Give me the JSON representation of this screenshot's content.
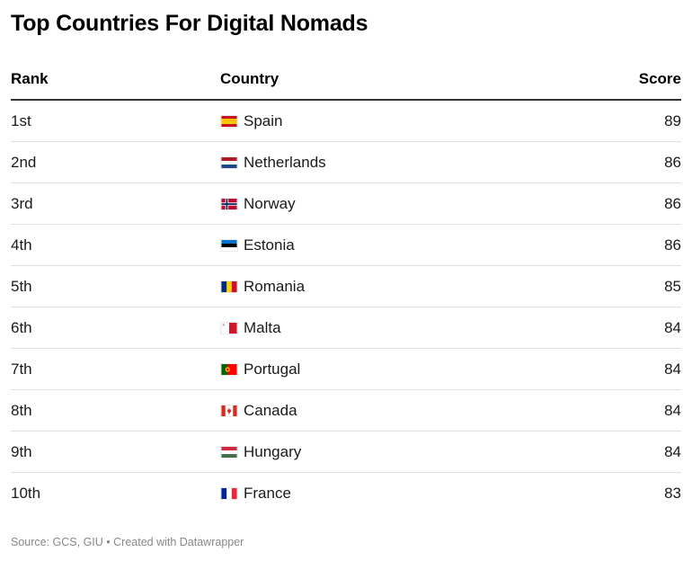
{
  "title": "Top Countries For Digital Nomads",
  "chart_data": {
    "type": "table",
    "columns": [
      "Rank",
      "Country",
      "Score"
    ],
    "rows": [
      {
        "rank": "1st",
        "country": "Spain",
        "flag": "flag-spain",
        "score": "89"
      },
      {
        "rank": "2nd",
        "country": "Netherlands",
        "flag": "flag-netherlands",
        "score": "86"
      },
      {
        "rank": "3rd",
        "country": "Norway",
        "flag": "flag-norway",
        "score": "86"
      },
      {
        "rank": "4th",
        "country": "Estonia",
        "flag": "flag-estonia",
        "score": "86"
      },
      {
        "rank": "5th",
        "country": "Romania",
        "flag": "flag-romania",
        "score": "85"
      },
      {
        "rank": "6th",
        "country": "Malta",
        "flag": "flag-malta",
        "score": "84"
      },
      {
        "rank": "7th",
        "country": "Portugal",
        "flag": "flag-portugal",
        "score": "84"
      },
      {
        "rank": "8th",
        "country": "Canada",
        "flag": "flag-canada",
        "score": "84"
      },
      {
        "rank": "9th",
        "country": "Hungary",
        "flag": "flag-hungary",
        "score": "84"
      },
      {
        "rank": "10th",
        "country": "France",
        "flag": "flag-france",
        "score": "83"
      }
    ]
  },
  "footer": "Source: GCS, GIU • Created with Datawrapper"
}
